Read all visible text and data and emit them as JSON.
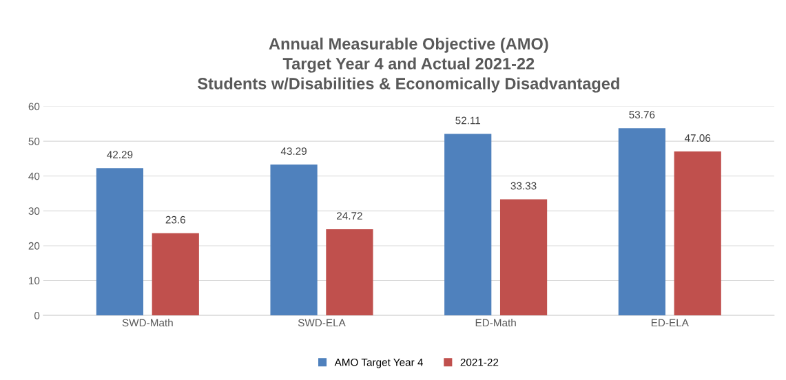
{
  "chart_data": {
    "type": "bar",
    "title": "Annual Measurable Objective (AMO)\nTarget Year 4 and Actual 2021-22\nStudents w/Disabilities & Economically Disadvantaged",
    "categories": [
      "SWD-Math",
      "SWD-ELA",
      "ED-Math",
      "ED-ELA"
    ],
    "series": [
      {
        "name": "AMO Target Year 4",
        "color": "#4f81bd",
        "values": [
          42.29,
          43.29,
          52.11,
          53.76
        ]
      },
      {
        "name": "2021-22",
        "color": "#c0504d",
        "values": [
          23.6,
          24.72,
          33.33,
          47.06
        ]
      }
    ],
    "ylim": [
      0,
      60
    ],
    "yticks": [
      0,
      10,
      20,
      30,
      40,
      50,
      60
    ],
    "grid": "y",
    "legend": "bottom",
    "data_labels": true
  }
}
